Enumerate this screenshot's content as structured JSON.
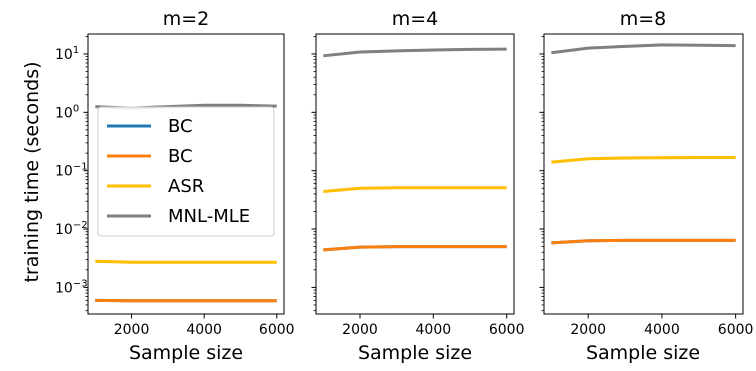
{
  "figure": {
    "ylabel": "training time (seconds)",
    "legend": {
      "placement": "inside first panel, middle",
      "entries": [
        {
          "label": "BC",
          "color": "#1f77b4"
        },
        {
          "label": "BC",
          "color": "#ff7f0e"
        },
        {
          "label": "ASR",
          "color": "#ffbf00"
        },
        {
          "label": "MNL-MLE",
          "color": "#808080"
        }
      ]
    },
    "y_tick_labels": [
      {
        "mantissa": "10",
        "exp": "1"
      },
      {
        "mantissa": "10",
        "exp": "0"
      },
      {
        "mantissa": "10",
        "exp": "−1"
      },
      {
        "mantissa": "10",
        "exp": "−2"
      },
      {
        "mantissa": "10",
        "exp": "−3"
      }
    ]
  },
  "chart_data": [
    {
      "type": "line",
      "title": "m=2",
      "xlabel": "Sample size",
      "ylabel": "training time (seconds)",
      "y_scale": "log",
      "xlim": [
        800,
        6200
      ],
      "ylim": [
        0.00035,
        22
      ],
      "x_ticks": [
        2000,
        4000,
        6000
      ],
      "x_tick_labels": [
        "2000",
        "4000",
        "6000"
      ],
      "y_ticks": [
        0.001,
        0.01,
        0.1,
        1,
        10
      ],
      "grid": false,
      "x": [
        1000,
        2000,
        3000,
        4000,
        5000,
        6000
      ],
      "series": [
        {
          "name": "BC",
          "color": "#1f77b4",
          "values": [
            0.0006,
            0.00059,
            0.00059,
            0.00059,
            0.00059,
            0.00059
          ]
        },
        {
          "name": "BC",
          "color": "#ff7f0e",
          "values": [
            0.0006,
            0.00059,
            0.00059,
            0.00059,
            0.00059,
            0.00059
          ]
        },
        {
          "name": "ASR",
          "color": "#ffbf00",
          "values": [
            0.0028,
            0.0027,
            0.0027,
            0.0027,
            0.0027,
            0.0027
          ]
        },
        {
          "name": "MNL-MLE",
          "color": "#808080",
          "values": [
            1.25,
            1.18,
            1.25,
            1.32,
            1.32,
            1.28
          ]
        }
      ]
    },
    {
      "type": "line",
      "title": "m=4",
      "xlabel": "Sample size",
      "y_scale": "log",
      "xlim": [
        800,
        6200
      ],
      "ylim": [
        0.00035,
        22
      ],
      "x_ticks": [
        2000,
        4000,
        6000
      ],
      "x_tick_labels": [
        "2000",
        "4000",
        "6000"
      ],
      "y_ticks": [
        0.001,
        0.01,
        0.1,
        1,
        10
      ],
      "grid": false,
      "x": [
        1000,
        2000,
        3000,
        4000,
        5000,
        6000
      ],
      "series": [
        {
          "name": "BC",
          "color": "#1f77b4",
          "values": [
            0.0044,
            0.0049,
            0.005,
            0.005,
            0.005,
            0.005
          ]
        },
        {
          "name": "BC",
          "color": "#ff7f0e",
          "values": [
            0.0044,
            0.0049,
            0.005,
            0.005,
            0.005,
            0.005
          ]
        },
        {
          "name": "ASR",
          "color": "#ffbf00",
          "values": [
            0.044,
            0.05,
            0.051,
            0.051,
            0.051,
            0.051
          ]
        },
        {
          "name": "MNL-MLE",
          "color": "#808080",
          "values": [
            9.3,
            10.8,
            11.3,
            11.7,
            12.0,
            12.1
          ]
        }
      ]
    },
    {
      "type": "line",
      "title": "m=8",
      "xlabel": "Sample size",
      "y_scale": "log",
      "xlim": [
        800,
        6200
      ],
      "ylim": [
        0.00035,
        22
      ],
      "x_ticks": [
        2000,
        4000,
        6000
      ],
      "x_tick_labels": [
        "2000",
        "4000",
        "6000"
      ],
      "y_ticks": [
        0.001,
        0.01,
        0.1,
        1,
        10
      ],
      "grid": false,
      "x": [
        1000,
        2000,
        3000,
        4000,
        5000,
        6000
      ],
      "series": [
        {
          "name": "BC",
          "color": "#1f77b4",
          "values": [
            0.0058,
            0.0063,
            0.0064,
            0.0064,
            0.0064,
            0.0064
          ]
        },
        {
          "name": "BC",
          "color": "#ff7f0e",
          "values": [
            0.0058,
            0.0063,
            0.0064,
            0.0064,
            0.0064,
            0.0064
          ]
        },
        {
          "name": "ASR",
          "color": "#ffbf00",
          "values": [
            0.14,
            0.16,
            0.165,
            0.167,
            0.168,
            0.168
          ]
        },
        {
          "name": "MNL-MLE",
          "color": "#808080",
          "values": [
            10.5,
            12.6,
            13.5,
            14.3,
            14.1,
            13.9
          ]
        }
      ]
    }
  ]
}
